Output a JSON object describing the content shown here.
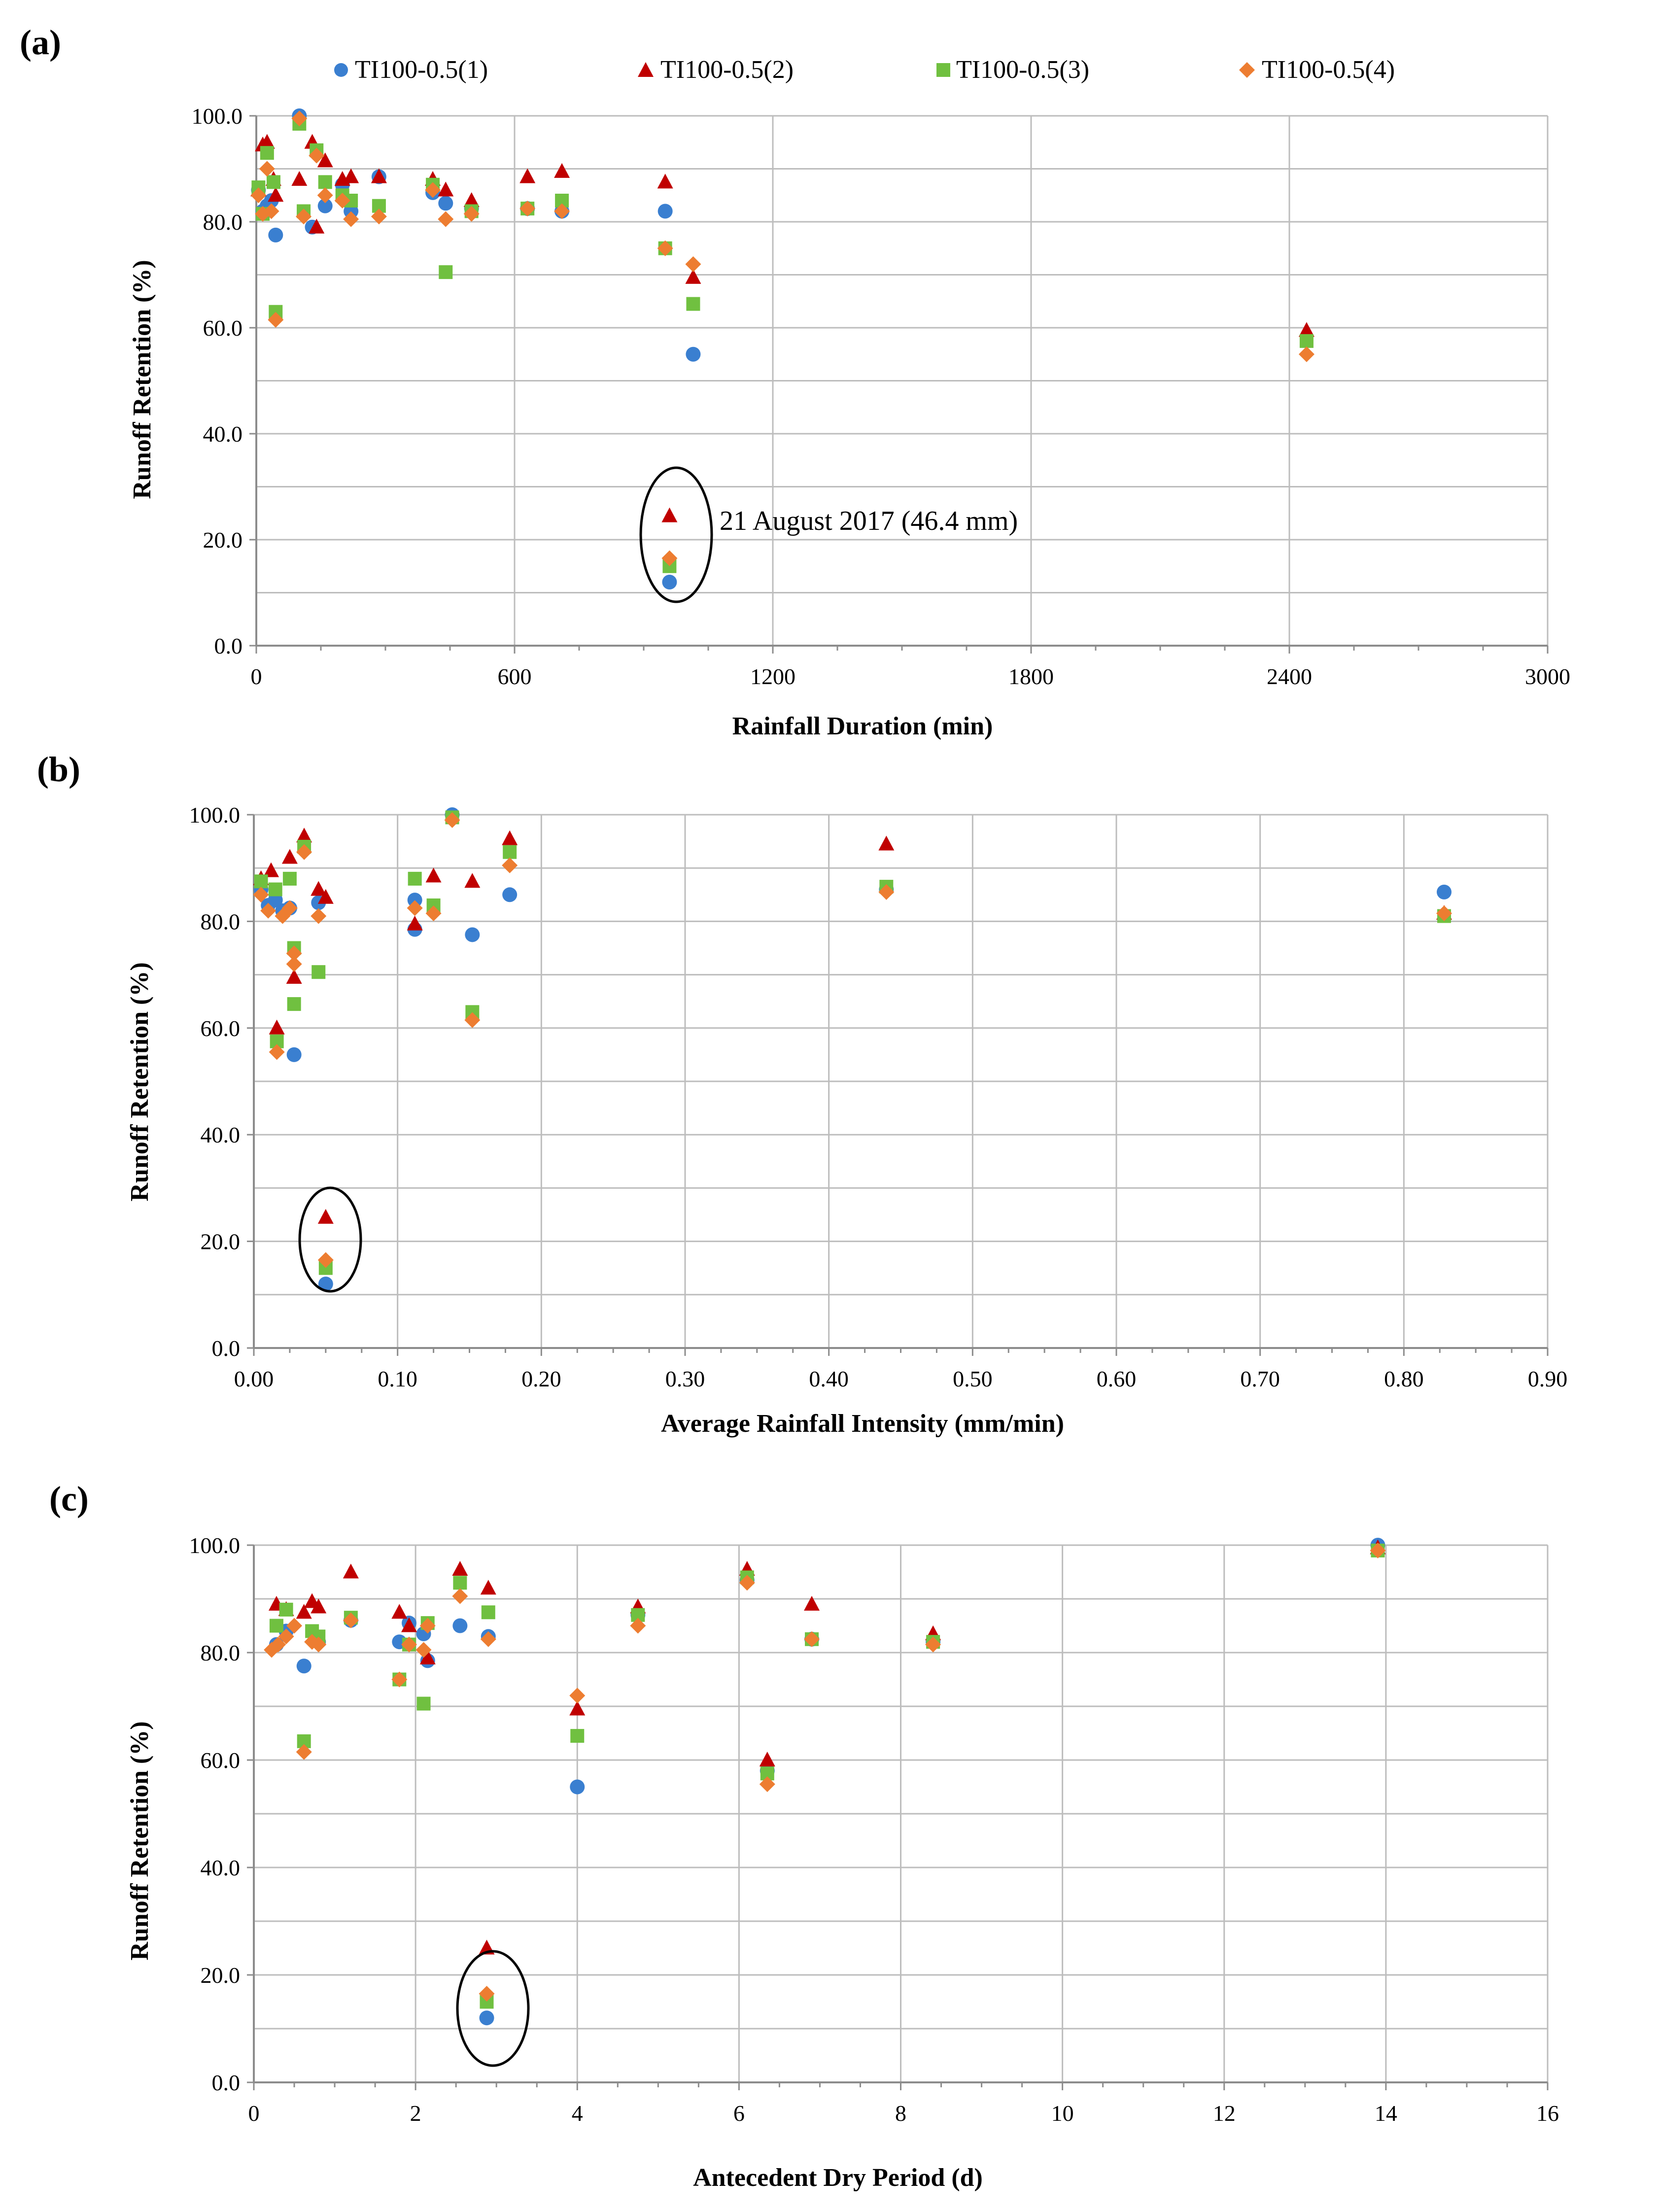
{
  "legend": [
    {
      "name": "TI100-0.5(1)",
      "marker": "circle",
      "color": "#3a7fd0"
    },
    {
      "name": "TI100-0.5(2)",
      "marker": "triangle",
      "color": "#c00000"
    },
    {
      "name": "TI100-0.5(3)",
      "marker": "square",
      "color": "#70c040"
    },
    {
      "name": "TI100-0.5(4)",
      "marker": "diamond",
      "color": "#ed7d31"
    }
  ],
  "chart_data": [
    {
      "type": "scatter",
      "panel_label": "(a)",
      "xlabel": "Rainfall Duration (min)",
      "ylabel": "Runoff Retention (%)",
      "xlim": [
        0,
        3000
      ],
      "ylim": [
        0,
        100
      ],
      "xticks": [
        0,
        600,
        1200,
        1800,
        2400,
        3000
      ],
      "xtick_labels": [
        "0",
        "600",
        "1200",
        "1800",
        "2400",
        "3000"
      ],
      "yticks": [
        0,
        20,
        40,
        60,
        80,
        100
      ],
      "ytick_labels": [
        "0.0",
        "20.0",
        "40.0",
        "60.0",
        "80.0",
        "100.0"
      ],
      "annotation": {
        "text": "21 August 2017 (46.4 mm)",
        "x": 950,
        "y": 18
      },
      "series": [
        {
          "name": "TI100-0.5(1)",
          "points": [
            [
              5,
              86
            ],
            [
              15,
              82
            ],
            [
              25,
              83
            ],
            [
              35,
              84
            ],
            [
              45,
              77.5
            ],
            [
              100,
              100
            ],
            [
              130,
              79
            ],
            [
              160,
              83
            ],
            [
              200,
              87
            ],
            [
              220,
              82
            ],
            [
              285,
              88.5
            ],
            [
              410,
              85.5
            ],
            [
              440,
              83.5
            ],
            [
              500,
              82.5
            ],
            [
              630,
              82.5
            ],
            [
              710,
              82
            ],
            [
              950,
              82
            ],
            [
              960,
              12
            ],
            [
              1015,
              55
            ]
          ]
        },
        {
          "name": "TI100-0.5(2)",
          "points": [
            [
              5,
              86
            ],
            [
              15,
              94.5
            ],
            [
              25,
              95
            ],
            [
              40,
              88
            ],
            [
              45,
              85
            ],
            [
              100,
              88
            ],
            [
              130,
              95
            ],
            [
              140,
              79
            ],
            [
              160,
              91.5
            ],
            [
              200,
              88
            ],
            [
              220,
              88.5
            ],
            [
              285,
              88.5
            ],
            [
              410,
              88
            ],
            [
              440,
              86
            ],
            [
              500,
              84
            ],
            [
              630,
              88.5
            ],
            [
              710,
              89.5
            ],
            [
              950,
              87.5
            ],
            [
              960,
              24.5
            ],
            [
              1015,
              69.5
            ],
            [
              2440,
              59.5
            ]
          ]
        },
        {
          "name": "TI100-0.5(3)",
          "points": [
            [
              5,
              86.5
            ],
            [
              15,
              81.5
            ],
            [
              25,
              93
            ],
            [
              40,
              87.5
            ],
            [
              45,
              63
            ],
            [
              100,
              98.5
            ],
            [
              110,
              82
            ],
            [
              140,
              93.5
            ],
            [
              160,
              87.5
            ],
            [
              200,
              85
            ],
            [
              220,
              84
            ],
            [
              285,
              83
            ],
            [
              410,
              87
            ],
            [
              440,
              70.5
            ],
            [
              500,
              82
            ],
            [
              630,
              82.5
            ],
            [
              710,
              84
            ],
            [
              950,
              75
            ],
            [
              960,
              15
            ],
            [
              1015,
              64.5
            ],
            [
              2440,
              57.5
            ]
          ]
        },
        {
          "name": "TI100-0.5(4)",
          "points": [
            [
              5,
              85
            ],
            [
              15,
              81.5
            ],
            [
              25,
              90
            ],
            [
              35,
              82
            ],
            [
              45,
              61.5
            ],
            [
              100,
              99.5
            ],
            [
              110,
              81
            ],
            [
              140,
              92.5
            ],
            [
              160,
              85
            ],
            [
              200,
              84
            ],
            [
              220,
              80.5
            ],
            [
              285,
              81
            ],
            [
              410,
              86
            ],
            [
              440,
              80.5
            ],
            [
              500,
              81.5
            ],
            [
              630,
              82.5
            ],
            [
              710,
              82
            ],
            [
              950,
              75
            ],
            [
              960,
              16.5
            ],
            [
              1015,
              72
            ],
            [
              2440,
              55
            ]
          ]
        }
      ]
    },
    {
      "type": "scatter",
      "panel_label": "(b)",
      "xlabel": "Average Rainfall Intensity (mm/min)",
      "ylabel": "Runoff Retention (%)",
      "xlim": [
        0,
        0.9
      ],
      "ylim": [
        0,
        100
      ],
      "xticks": [
        0,
        0.1,
        0.2,
        0.3,
        0.4,
        0.5,
        0.6,
        0.7,
        0.8,
        0.9
      ],
      "xtick_labels": [
        "0.00",
        "0.10",
        "0.20",
        "0.30",
        "0.40",
        "0.50",
        "0.60",
        "0.70",
        "0.80",
        "0.90"
      ],
      "yticks": [
        0,
        20,
        40,
        60,
        80,
        100
      ],
      "ytick_labels": [
        "0.0",
        "20.0",
        "40.0",
        "60.0",
        "80.0",
        "100.0"
      ],
      "series": [
        {
          "name": "TI100-0.5(1)",
          "points": [
            [
              0.005,
              86
            ],
            [
              0.01,
              83
            ],
            [
              0.015,
              84
            ],
            [
              0.02,
              82
            ],
            [
              0.025,
              82.5
            ],
            [
              0.028,
              55
            ],
            [
              0.045,
              83.5
            ],
            [
              0.05,
              12
            ],
            [
              0.112,
              78.5
            ],
            [
              0.112,
              84
            ],
            [
              0.138,
              100
            ],
            [
              0.152,
              77.5
            ],
            [
              0.178,
              85
            ],
            [
              0.44,
              86
            ],
            [
              0.828,
              85.5
            ]
          ]
        },
        {
          "name": "TI100-0.5(2)",
          "points": [
            [
              0.005,
              88
            ],
            [
              0.012,
              89.5
            ],
            [
              0.016,
              60
            ],
            [
              0.025,
              92
            ],
            [
              0.028,
              69.5
            ],
            [
              0.035,
              96
            ],
            [
              0.045,
              86
            ],
            [
              0.05,
              84.5
            ],
            [
              0.05,
              24.5
            ],
            [
              0.112,
              79.5
            ],
            [
              0.125,
              88.5
            ],
            [
              0.152,
              87.5
            ],
            [
              0.178,
              95.5
            ],
            [
              0.44,
              94.5
            ],
            [
              0.828,
              81.5
            ]
          ]
        },
        {
          "name": "TI100-0.5(3)",
          "points": [
            [
              0.005,
              87.5
            ],
            [
              0.015,
              86
            ],
            [
              0.016,
              57.5
            ],
            [
              0.025,
              88
            ],
            [
              0.028,
              64.5
            ],
            [
              0.028,
              75
            ],
            [
              0.035,
              94
            ],
            [
              0.045,
              70.5
            ],
            [
              0.05,
              15
            ],
            [
              0.112,
              88
            ],
            [
              0.125,
              83
            ],
            [
              0.138,
              99.5
            ],
            [
              0.152,
              63
            ],
            [
              0.178,
              93
            ],
            [
              0.44,
              86.5
            ],
            [
              0.828,
              81
            ]
          ]
        },
        {
          "name": "TI100-0.5(4)",
          "points": [
            [
              0.005,
              85
            ],
            [
              0.01,
              82
            ],
            [
              0.02,
              81
            ],
            [
              0.016,
              55.5
            ],
            [
              0.025,
              82.5
            ],
            [
              0.028,
              72
            ],
            [
              0.028,
              74
            ],
            [
              0.035,
              93
            ],
            [
              0.045,
              81
            ],
            [
              0.05,
              16.5
            ],
            [
              0.112,
              82.5
            ],
            [
              0.125,
              81.5
            ],
            [
              0.138,
              99
            ],
            [
              0.152,
              61.5
            ],
            [
              0.178,
              90.5
            ],
            [
              0.44,
              85.5
            ],
            [
              0.828,
              81.5
            ]
          ]
        }
      ]
    },
    {
      "type": "scatter",
      "panel_label": "(c)",
      "xlabel": "Antecedent Dry Period (d)",
      "ylabel": "Runoff Retention (%)",
      "xlim": [
        0,
        16
      ],
      "ylim": [
        0,
        100
      ],
      "xticks": [
        0,
        2,
        4,
        6,
        8,
        10,
        12,
        14,
        16
      ],
      "xtick_labels": [
        "0",
        "2",
        "4",
        "6",
        "8",
        "10",
        "12",
        "14",
        "16"
      ],
      "yticks": [
        0,
        20,
        40,
        60,
        80,
        100
      ],
      "ytick_labels": [
        "0.0",
        "20.0",
        "40.0",
        "60.0",
        "80.0",
        "100.0"
      ],
      "series": [
        {
          "name": "TI100-0.5(1)",
          "points": [
            [
              0.28,
              81.5
            ],
            [
              0.4,
              84
            ],
            [
              0.62,
              77.5
            ],
            [
              0.8,
              82
            ],
            [
              1.2,
              86
            ],
            [
              1.8,
              82
            ],
            [
              1.92,
              85.5
            ],
            [
              2.1,
              83.5
            ],
            [
              2.15,
              78.5
            ],
            [
              2.55,
              85
            ],
            [
              2.9,
              83
            ],
            [
              2.88,
              12
            ],
            [
              4.0,
              55
            ],
            [
              4.75,
              87
            ],
            [
              6.1,
              93.5
            ],
            [
              6.35,
              58
            ],
            [
              6.9,
              82.5
            ],
            [
              8.4,
              82
            ],
            [
              13.9,
              100
            ]
          ]
        },
        {
          "name": "TI100-0.5(2)",
          "points": [
            [
              0.28,
              89
            ],
            [
              0.4,
              88
            ],
            [
              0.62,
              87.5
            ],
            [
              0.72,
              89.5
            ],
            [
              0.8,
              88.5
            ],
            [
              1.2,
              95
            ],
            [
              1.8,
              87.5
            ],
            [
              1.92,
              85
            ],
            [
              2.15,
              79
            ],
            [
              2.55,
              95.5
            ],
            [
              2.9,
              92
            ],
            [
              2.88,
              25
            ],
            [
              4.0,
              69.5
            ],
            [
              4.75,
              88.5
            ],
            [
              6.1,
              95.5
            ],
            [
              6.35,
              60
            ],
            [
              6.9,
              89
            ],
            [
              8.4,
              83.5
            ],
            [
              13.9,
              99.5
            ]
          ]
        },
        {
          "name": "TI100-0.5(3)",
          "points": [
            [
              0.28,
              85
            ],
            [
              0.4,
              88
            ],
            [
              0.62,
              63.5
            ],
            [
              0.72,
              84
            ],
            [
              0.8,
              83
            ],
            [
              1.2,
              86.5
            ],
            [
              1.8,
              75
            ],
            [
              1.92,
              81.5
            ],
            [
              2.1,
              70.5
            ],
            [
              2.15,
              85.5
            ],
            [
              2.55,
              93
            ],
            [
              2.9,
              87.5
            ],
            [
              2.88,
              15
            ],
            [
              4.0,
              64.5
            ],
            [
              4.75,
              87
            ],
            [
              6.1,
              94
            ],
            [
              6.35,
              57.5
            ],
            [
              6.9,
              82.5
            ],
            [
              8.4,
              82
            ],
            [
              13.9,
              99
            ]
          ]
        },
        {
          "name": "TI100-0.5(4)",
          "points": [
            [
              0.22,
              80.5
            ],
            [
              0.3,
              81.5
            ],
            [
              0.4,
              83
            ],
            [
              0.5,
              85
            ],
            [
              0.62,
              61.5
            ],
            [
              0.72,
              82
            ],
            [
              0.8,
              81.5
            ],
            [
              1.2,
              86
            ],
            [
              1.8,
              75
            ],
            [
              1.92,
              81.5
            ],
            [
              2.1,
              80.5
            ],
            [
              2.15,
              85
            ],
            [
              2.55,
              90.5
            ],
            [
              2.9,
              82.5
            ],
            [
              2.88,
              16.5
            ],
            [
              4.0,
              72
            ],
            [
              4.75,
              85
            ],
            [
              6.1,
              93
            ],
            [
              6.35,
              55.5
            ],
            [
              6.9,
              82.5
            ],
            [
              8.4,
              81.5
            ],
            [
              13.9,
              99
            ]
          ]
        }
      ]
    }
  ]
}
